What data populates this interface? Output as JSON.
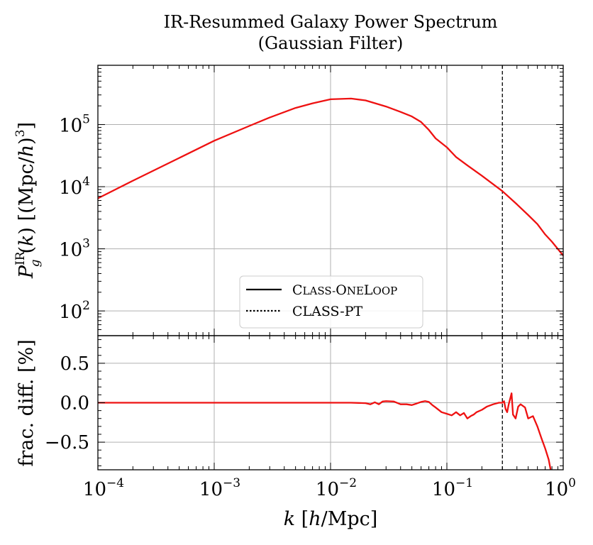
{
  "chart_data": {
    "type": "line",
    "title": [
      "IR-Resummed Galaxy Power Spectrum",
      "(Gaussian Filter)"
    ],
    "xscale": "log",
    "xlim": [
      0.0001,
      1
    ],
    "xlabel": "k [h/Mpc]",
    "xticks": [
      {
        "value": 0.0001,
        "base": "10",
        "exp": "−4"
      },
      {
        "value": 0.001,
        "base": "10",
        "exp": "−3"
      },
      {
        "value": 0.01,
        "base": "10",
        "exp": "−2"
      },
      {
        "value": 0.1,
        "base": "10",
        "exp": "−1"
      },
      {
        "value": 1,
        "base": "10",
        "exp": "0"
      }
    ],
    "vline_k": 0.3,
    "panels": {
      "top": {
        "yscale": "log",
        "ylim": [
          40,
          900000
        ],
        "ylabel": "P_g^IR(k) [(Mpc/h)^3]",
        "yticks": [
          {
            "value": 100,
            "base": "10",
            "exp": "2"
          },
          {
            "value": 1000,
            "base": "10",
            "exp": "3"
          },
          {
            "value": 10000,
            "base": "10",
            "exp": "4"
          },
          {
            "value": 100000,
            "base": "10",
            "exp": "5"
          }
        ],
        "series": [
          {
            "name": "power_spectrum",
            "color": "#ee1111",
            "points": [
              [
                0.0001,
                6500
              ],
              [
                0.0002,
                12500
              ],
              [
                0.0005,
                29000
              ],
              [
                0.001,
                55000
              ],
              [
                0.002,
                95000
              ],
              [
                0.003,
                130000
              ],
              [
                0.005,
                185000
              ],
              [
                0.007,
                220000
              ],
              [
                0.01,
                255000
              ],
              [
                0.015,
                262000
              ],
              [
                0.02,
                245000
              ],
              [
                0.03,
                195000
              ],
              [
                0.04,
                160000
              ],
              [
                0.05,
                135000
              ],
              [
                0.06,
                110000
              ],
              [
                0.07,
                82000
              ],
              [
                0.08,
                60000
              ],
              [
                0.1,
                43000
              ],
              [
                0.12,
                30000
              ],
              [
                0.15,
                22000
              ],
              [
                0.2,
                15000
              ],
              [
                0.3,
                8500
              ],
              [
                0.4,
                5200
              ],
              [
                0.5,
                3500
              ],
              [
                0.6,
                2500
              ],
              [
                0.7,
                1700
              ],
              [
                0.8,
                1300
              ],
              [
                1.0,
                780
              ]
            ]
          }
        ],
        "legend": {
          "location": "lower-center",
          "entries": [
            {
              "label_head": "C",
              "label_rest": "LASS-",
              "label_head2": "O",
              "label_rest2": "NE",
              "label_head3": "L",
              "label_rest3": "OOP",
              "style": "solid"
            },
            {
              "label": "CLASS-PT",
              "style": "dotted"
            }
          ]
        }
      },
      "bottom": {
        "yscale": "linear",
        "ylim": [
          -0.85,
          0.85
        ],
        "ylabel": "frac. diff. [%]",
        "yticks": [
          {
            "value": 0.5,
            "label": "0.5"
          },
          {
            "value": 0.0,
            "label": "0.0"
          },
          {
            "value": -0.5,
            "label": "−0.5"
          }
        ],
        "series": [
          {
            "name": "fractional_difference",
            "color": "#ee1111",
            "points": [
              [
                0.0001,
                0.0
              ],
              [
                0.001,
                0.0
              ],
              [
                0.01,
                0.0
              ],
              [
                0.015,
                0.0
              ],
              [
                0.02,
                -0.005
              ],
              [
                0.022,
                -0.02
              ],
              [
                0.024,
                0.005
              ],
              [
                0.026,
                -0.02
              ],
              [
                0.028,
                0.015
              ],
              [
                0.03,
                0.02
              ],
              [
                0.035,
                0.015
              ],
              [
                0.04,
                -0.02
              ],
              [
                0.045,
                -0.02
              ],
              [
                0.05,
                -0.03
              ],
              [
                0.055,
                -0.01
              ],
              [
                0.06,
                0.01
              ],
              [
                0.065,
                0.02
              ],
              [
                0.07,
                0.01
              ],
              [
                0.075,
                -0.03
              ],
              [
                0.08,
                -0.06
              ],
              [
                0.09,
                -0.12
              ],
              [
                0.1,
                -0.14
              ],
              [
                0.11,
                -0.16
              ],
              [
                0.12,
                -0.12
              ],
              [
                0.13,
                -0.16
              ],
              [
                0.14,
                -0.13
              ],
              [
                0.15,
                -0.2
              ],
              [
                0.16,
                -0.17
              ],
              [
                0.17,
                -0.15
              ],
              [
                0.18,
                -0.12
              ],
              [
                0.2,
                -0.09
              ],
              [
                0.22,
                -0.05
              ],
              [
                0.25,
                -0.02
              ],
              [
                0.28,
                0.0
              ],
              [
                0.3,
                0.0
              ],
              [
                0.31,
                0.02
              ],
              [
                0.32,
                -0.08
              ],
              [
                0.33,
                -0.12
              ],
              [
                0.34,
                -0.02
              ],
              [
                0.36,
                0.12
              ],
              [
                0.37,
                -0.15
              ],
              [
                0.39,
                -0.2
              ],
              [
                0.41,
                -0.05
              ],
              [
                0.43,
                -0.02
              ],
              [
                0.47,
                -0.06
              ],
              [
                0.5,
                -0.2
              ],
              [
                0.55,
                -0.17
              ],
              [
                0.6,
                -0.3
              ],
              [
                0.65,
                -0.45
              ],
              [
                0.7,
                -0.58
              ],
              [
                0.75,
                -0.72
              ],
              [
                0.78,
                -0.85
              ]
            ]
          }
        ]
      }
    }
  }
}
